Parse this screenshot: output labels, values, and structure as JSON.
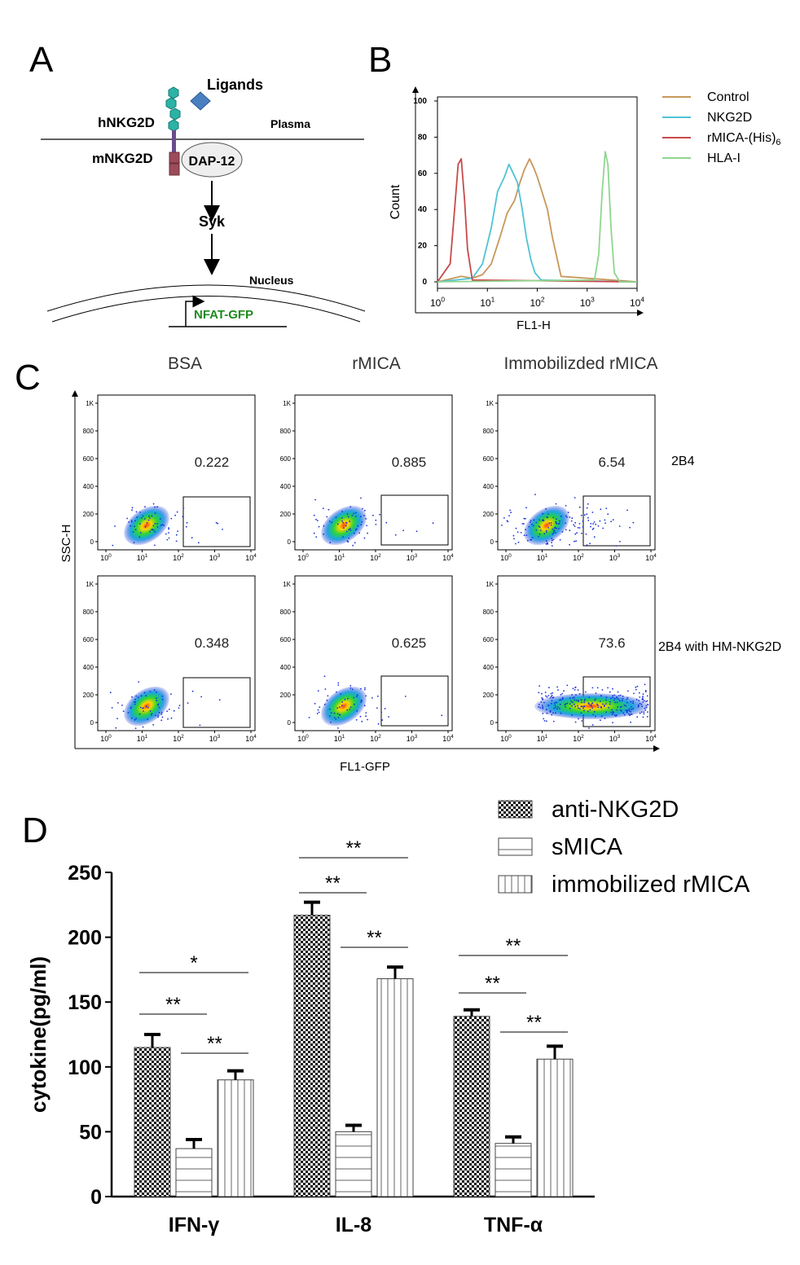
{
  "panels": {
    "A": {
      "letter": "A",
      "ligands": "Ligands",
      "hnkg2d": "hNKG2D",
      "plasma": "Plasma",
      "mnkg2d": "mNKG2D",
      "dap12": "DAP-12",
      "syk": "Syk",
      "nucleus": "Nucleus",
      "nfat": "NFAT-GFP",
      "colors": {
        "receptor": "#2bb3a6",
        "ligand": "#4a7fc0",
        "tm": "#9c4b5a",
        "nfat": "#1e8a1e"
      }
    },
    "B": {
      "letter": "B",
      "ylabel": "Count",
      "xlabel": "FL1-H",
      "yticks": [
        "0",
        "20",
        "40",
        "60",
        "80",
        "100"
      ],
      "xticks": [
        {
          "base": "10",
          "exp": "0"
        },
        {
          "base": "10",
          "exp": "1"
        },
        {
          "base": "10",
          "exp": "2"
        },
        {
          "base": "10",
          "exp": "3"
        },
        {
          "base": "10",
          "exp": "4"
        }
      ],
      "legend": [
        {
          "label": "Control",
          "sub": "",
          "color": "#c8975a"
        },
        {
          "label": "NKG2D",
          "sub": "",
          "color": "#4fc3d6"
        },
        {
          "label": "rMICA-(His)",
          "sub": "6",
          "color": "#c84a4a"
        },
        {
          "label": "HLA-I",
          "sub": "",
          "color": "#8fd68f"
        }
      ]
    },
    "C": {
      "letter": "C",
      "columns": [
        "BSA",
        "rMICA",
        "Immobilizded rMICA"
      ],
      "rows": [
        "2B4",
        "2B4 with HM-NKG2D"
      ],
      "values": [
        [
          "0.222",
          "0.885",
          "6.54"
        ],
        [
          "0.348",
          "0.625",
          "73.6"
        ]
      ],
      "ylabel": "SSC-H",
      "xlabel": "FL1-GFP",
      "yticks": [
        "0",
        "200",
        "400",
        "600",
        "800",
        "1K"
      ],
      "xtick_base": "10",
      "xtick_exps": [
        "0",
        "1",
        "2",
        "3",
        "4"
      ]
    },
    "D": {
      "letter": "D"
    }
  },
  "chart_data": [
    {
      "type": "line",
      "panel": "B",
      "xscale": "log",
      "xlim": [
        1,
        10000
      ],
      "ylim": [
        0,
        100
      ],
      "xlabel": "FL1-H",
      "ylabel": "Count",
      "series": [
        {
          "name": "Control",
          "color": "#c8975a",
          "x": [
            1,
            3,
            5,
            8,
            12,
            18,
            25,
            35,
            45,
            55,
            70,
            85,
            100,
            130,
            160,
            200,
            300,
            10000
          ],
          "y": [
            0,
            3,
            2,
            4,
            10,
            25,
            38,
            45,
            55,
            62,
            68,
            63,
            58,
            48,
            40,
            25,
            3,
            0
          ]
        },
        {
          "name": "NKG2D",
          "color": "#4fc3d6",
          "x": [
            1,
            5,
            8,
            12,
            16,
            22,
            27,
            33,
            40,
            50,
            60,
            75,
            90,
            120,
            10000
          ],
          "y": [
            0,
            2,
            10,
            30,
            50,
            58,
            65,
            60,
            55,
            40,
            25,
            12,
            5,
            1,
            0
          ]
        },
        {
          "name": "rMICA-(His)6",
          "color": "#c84a4a",
          "x": [
            1,
            1.8,
            2.2,
            2.6,
            3,
            3.5,
            4,
            5,
            10000
          ],
          "y": [
            0,
            10,
            40,
            65,
            68,
            45,
            18,
            1,
            0
          ]
        },
        {
          "name": "HLA-I",
          "color": "#8fd68f",
          "x": [
            1,
            1400,
            1700,
            2000,
            2300,
            2600,
            3000,
            3500,
            4500,
            10000
          ],
          "y": [
            0,
            1,
            15,
            50,
            72,
            65,
            30,
            5,
            0,
            0
          ]
        }
      ]
    },
    {
      "type": "bar",
      "panel": "D",
      "categories": [
        "IFN-γ",
        "IL-8",
        "TNF-α"
      ],
      "ylabel": "cytokine(pg/ml)",
      "ylim": [
        0,
        250
      ],
      "yticks": [
        "0",
        "50",
        "100",
        "150",
        "200",
        "250"
      ],
      "series": [
        {
          "name": "anti-NKG2D",
          "values": [
            115,
            217,
            139
          ],
          "errors": [
            10,
            10,
            5
          ]
        },
        {
          "name": "sMICA",
          "values": [
            37,
            50,
            41
          ],
          "errors": [
            7,
            5,
            5
          ]
        },
        {
          "name": "immobilized rMICA",
          "values": [
            90,
            168,
            106
          ],
          "errors": [
            7,
            9,
            10
          ]
        }
      ],
      "significance": [
        {
          "category": 0,
          "pairs": [
            {
              "a": 0,
              "b": 1,
              "label": "**"
            },
            {
              "a": 1,
              "b": 2,
              "label": "**"
            },
            {
              "a": 0,
              "b": 2,
              "label": "*"
            }
          ]
        },
        {
          "category": 1,
          "pairs": [
            {
              "a": 0,
              "b": 1,
              "label": "**"
            },
            {
              "a": 1,
              "b": 2,
              "label": "**"
            },
            {
              "a": 0,
              "b": 2,
              "label": "**"
            }
          ]
        },
        {
          "category": 2,
          "pairs": [
            {
              "a": 0,
              "b": 1,
              "label": "**"
            },
            {
              "a": 1,
              "b": 2,
              "label": "**"
            },
            {
              "a": 0,
              "b": 2,
              "label": "**"
            }
          ]
        }
      ]
    }
  ]
}
